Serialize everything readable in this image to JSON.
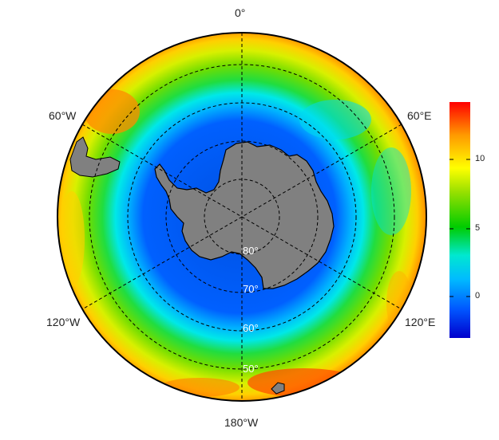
{
  "map": {
    "projection": "south-polar stereographic",
    "longitude_labels": {
      "top": "0°",
      "left_upper": "60°W",
      "right_upper": "60°E",
      "left_lower": "120°W",
      "right_lower": "120°E",
      "bottom": "180°W"
    },
    "latitude_labels": [
      "80°",
      "70°",
      "60°",
      "50°"
    ],
    "land_color": "#808080",
    "graticule": "dashed black"
  },
  "colorbar": {
    "ticks": [
      "10",
      "5",
      "0"
    ],
    "range": [
      -3,
      14
    ],
    "colormap": "jet",
    "colors": [
      "#0000cc",
      "#0066ff",
      "#00ccff",
      "#00e0c0",
      "#00cc00",
      "#88dd00",
      "#ffff00",
      "#ffaa00",
      "#ff0000"
    ]
  }
}
